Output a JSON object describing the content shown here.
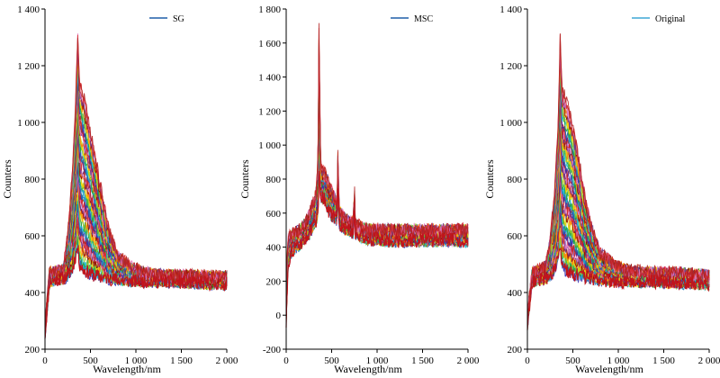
{
  "palette": [
    "#2e2ab0",
    "#1f77b4",
    "#17becf",
    "#2ca02c",
    "#9acd32",
    "#ffd700",
    "#ff7f0e",
    "#8b0000",
    "#6a3d9a",
    "#e377c2",
    "#d62728",
    "#b22222"
  ],
  "chart_data": [
    {
      "type": "line",
      "title": "",
      "legend": {
        "label": "SG",
        "color": "#1f5fa8",
        "position": "top-right"
      },
      "xlabel": "Wavelength/nm",
      "ylabel": "Counters",
      "xlim": [
        0,
        2000
      ],
      "ylim": [
        200,
        1400
      ],
      "xticks": [
        0,
        500,
        1000,
        1500,
        2000
      ],
      "xtick_labels": [
        "0",
        "500",
        "1 000",
        "1 500",
        "2 000"
      ],
      "yticks": [
        200,
        400,
        600,
        800,
        1000,
        1200,
        1400
      ],
      "ytick_labels": [
        "200",
        "400",
        "600",
        "800",
        "1 000",
        "1 200",
        "1 400"
      ],
      "grid": false,
      "series_count": 60,
      "noise": 25,
      "profile": {
        "x": [
          0,
          50,
          200,
          250,
          300,
          330,
          360,
          380,
          420,
          480,
          550,
          620,
          700,
          800,
          950,
          1100,
          1300,
          1600,
          2000
        ],
        "y_low": [
          250,
          440,
          450,
          460,
          480,
          520,
          560,
          500,
          480,
          470,
          460,
          455,
          450,
          445,
          440,
          440,
          440,
          435,
          430
        ],
        "y_high": [
          280,
          470,
          480,
          600,
          820,
          1000,
          1320,
          1140,
          1100,
          1000,
          880,
          760,
          620,
          530,
          490,
          470,
          460,
          460,
          455
        ]
      }
    },
    {
      "type": "line",
      "title": "",
      "legend": {
        "label": "MSC",
        "color": "#1f5fa8",
        "position": "top-right"
      },
      "xlabel": "Wavelength/nm",
      "ylabel": "Counters",
      "xlim": [
        0,
        2000
      ],
      "ylim": [
        -200,
        1800
      ],
      "xticks": [
        0,
        500,
        1000,
        1500,
        2000
      ],
      "xtick_labels": [
        "0",
        "500",
        "1 000",
        "1 500",
        "2 000"
      ],
      "yticks": [
        -200,
        0,
        200,
        400,
        600,
        800,
        1000,
        1200,
        1400,
        1600,
        1800
      ],
      "ytick_labels": [
        "-200",
        "0",
        "200",
        "400",
        "600",
        "800",
        "1 000",
        "1 200",
        "1 400",
        "1 600",
        "1 800"
      ],
      "grid": false,
      "series_count": 60,
      "noise": 45,
      "profile": {
        "x": [
          0,
          20,
          60,
          150,
          250,
          330,
          350,
          360,
          380,
          420,
          480,
          560,
          570,
          580,
          650,
          740,
          750,
          760,
          900,
          1200,
          1600,
          2000
        ],
        "y_low": [
          -50,
          300,
          380,
          420,
          480,
          560,
          600,
          820,
          700,
          680,
          600,
          560,
          780,
          540,
          510,
          490,
          640,
          480,
          450,
          440,
          440,
          440
        ],
        "y_high": [
          200,
          450,
          470,
          500,
          580,
          720,
          900,
          1680,
          850,
          840,
          760,
          650,
          1000,
          620,
          560,
          540,
          760,
          530,
          500,
          500,
          500,
          500
        ]
      }
    },
    {
      "type": "line",
      "title": "",
      "legend": {
        "label": "Original",
        "color": "#3fa7d6",
        "position": "top-right"
      },
      "xlabel": "Wavelength/nm",
      "ylabel": "Counters",
      "xlim": [
        0,
        2000
      ],
      "ylim": [
        200,
        1400
      ],
      "xticks": [
        0,
        500,
        1000,
        1500,
        2000
      ],
      "xtick_labels": [
        "0",
        "500",
        "1 000",
        "1 500",
        "2 000"
      ],
      "yticks": [
        200,
        400,
        600,
        800,
        1000,
        1200,
        1400
      ],
      "ytick_labels": [
        "200",
        "400",
        "600",
        "800",
        "1 000",
        "1 200",
        "1 400"
      ],
      "grid": false,
      "series_count": 60,
      "noise": 25,
      "profile": {
        "x": [
          0,
          50,
          200,
          250,
          300,
          340,
          360,
          380,
          420,
          480,
          550,
          620,
          700,
          800,
          950,
          1100,
          1300,
          1600,
          2000
        ],
        "y_low": [
          280,
          440,
          450,
          460,
          480,
          520,
          560,
          500,
          480,
          470,
          460,
          455,
          450,
          445,
          440,
          440,
          440,
          435,
          430
        ],
        "y_high": [
          320,
          470,
          490,
          580,
          760,
          1000,
          1300,
          1120,
          1080,
          1020,
          900,
          760,
          640,
          540,
          500,
          480,
          470,
          470,
          460
        ]
      }
    }
  ]
}
